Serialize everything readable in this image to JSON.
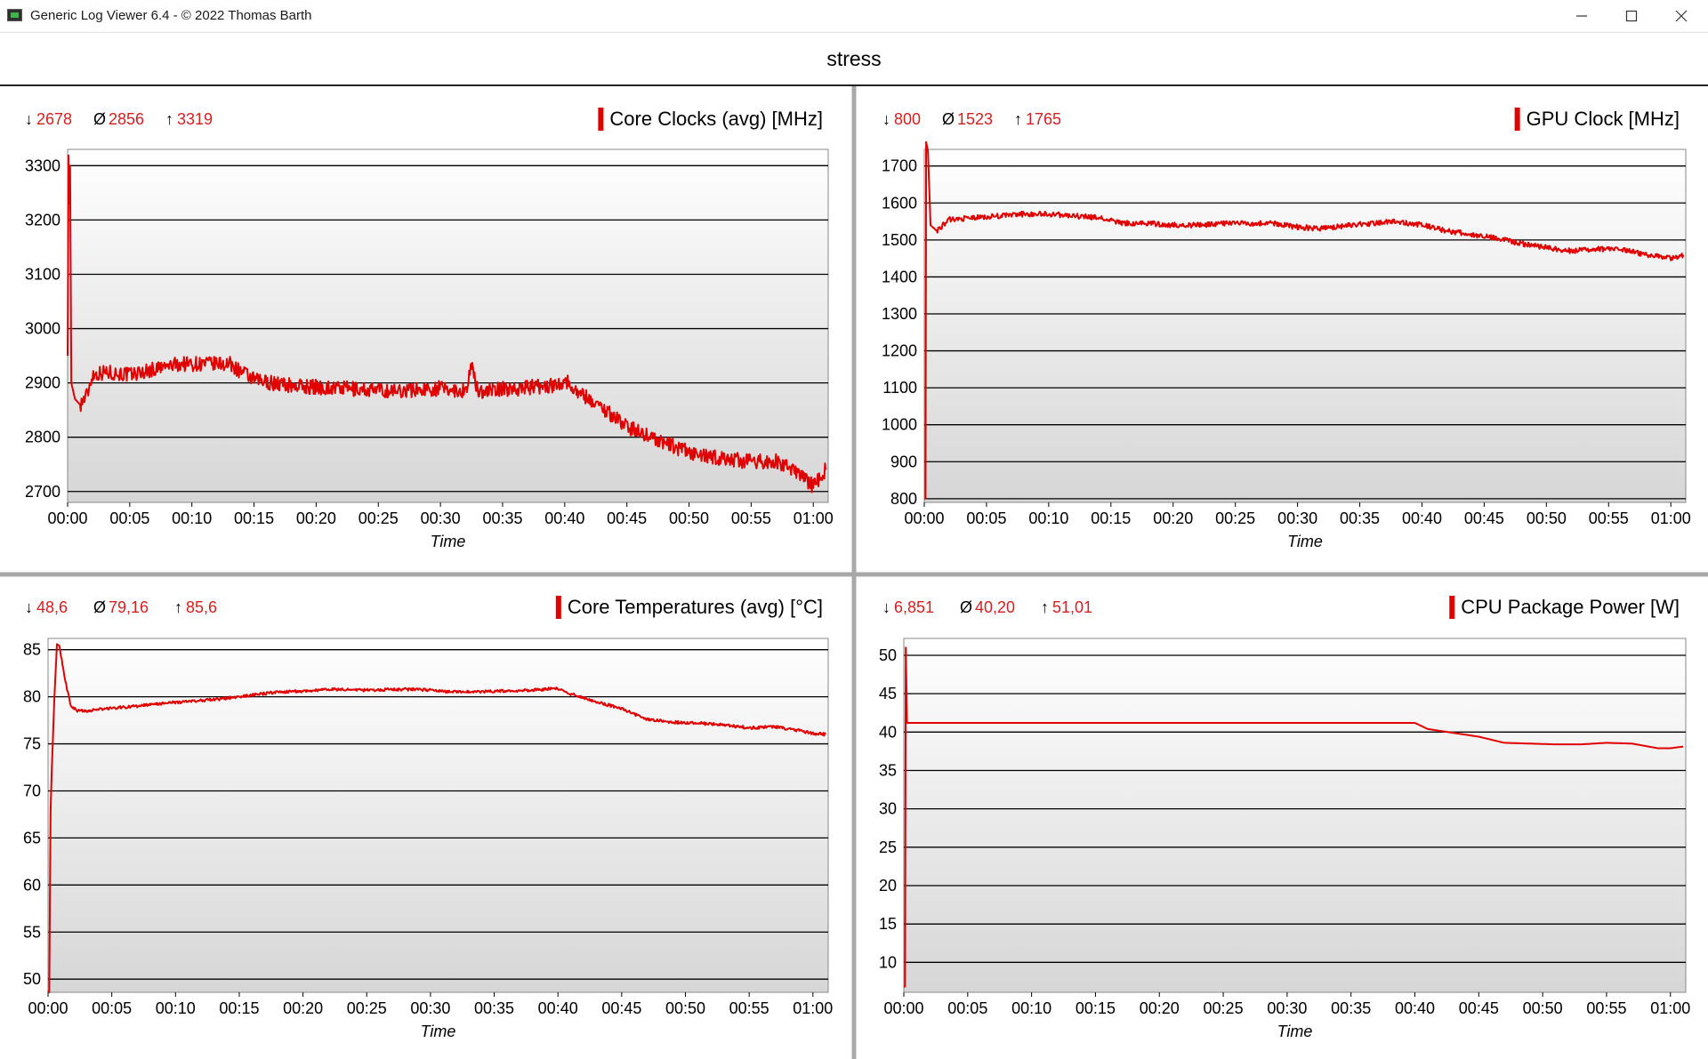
{
  "window": {
    "title": "Generic Log Viewer 6.4 - © 2022 Thomas Barth",
    "minimize_icon": "minimize-icon",
    "maximize_icon": "maximize-icon",
    "close_icon": "close-icon"
  },
  "document_title": "stress",
  "colors": {
    "series": "#e00000",
    "stats": "#d42020",
    "grid": "#000000"
  },
  "chart_data": [
    {
      "type": "line",
      "title": "Core Clocks (avg) [MHz]",
      "xlabel": "Time",
      "ylabel": "",
      "stats": {
        "min": "2678",
        "avg": "2856",
        "max": "3319"
      },
      "x_ticks": [
        "00:00",
        "00:05",
        "00:10",
        "00:15",
        "00:20",
        "00:25",
        "00:30",
        "00:35",
        "00:40",
        "00:45",
        "00:50",
        "00:55",
        "01:00"
      ],
      "y_ticks": [
        2700,
        2800,
        2900,
        3000,
        3100,
        3200,
        3300
      ],
      "xlim": [
        0,
        61.2
      ],
      "ylim": [
        2680,
        3330
      ],
      "noise": 14,
      "series": [
        {
          "values": [
            [
              0,
              2950
            ],
            [
              0.08,
              3319
            ],
            [
              0.12,
              3230
            ],
            [
              0.2,
              3300
            ],
            [
              0.3,
              2900
            ],
            [
              0.6,
              2870
            ],
            [
              1,
              2860
            ],
            [
              1.6,
              2880
            ],
            [
              2,
              2915
            ],
            [
              3,
              2920
            ],
            [
              5,
              2915
            ],
            [
              7,
              2925
            ],
            [
              9,
              2935
            ],
            [
              11,
              2935
            ],
            [
              13,
              2935
            ],
            [
              15,
              2905
            ],
            [
              18,
              2895
            ],
            [
              22,
              2890
            ],
            [
              26,
              2885
            ],
            [
              30,
              2890
            ],
            [
              32,
              2885
            ],
            [
              32.5,
              2930
            ],
            [
              33,
              2885
            ],
            [
              36,
              2890
            ],
            [
              39,
              2895
            ],
            [
              40,
              2905
            ],
            [
              41,
              2885
            ],
            [
              43,
              2855
            ],
            [
              45,
              2820
            ],
            [
              47,
              2800
            ],
            [
              49,
              2780
            ],
            [
              51,
              2765
            ],
            [
              53,
              2760
            ],
            [
              55,
              2755
            ],
            [
              57,
              2755
            ],
            [
              59,
              2730
            ],
            [
              60,
              2710
            ],
            [
              61,
              2740
            ]
          ]
        }
      ]
    },
    {
      "type": "line",
      "title": "GPU Clock [MHz]",
      "xlabel": "Time",
      "ylabel": "",
      "stats": {
        "min": "800",
        "avg": "1523",
        "max": "1765"
      },
      "x_ticks": [
        "00:00",
        "00:05",
        "00:10",
        "00:15",
        "00:20",
        "00:25",
        "00:30",
        "00:35",
        "00:40",
        "00:45",
        "00:50",
        "00:55",
        "01:00"
      ],
      "y_ticks": [
        800,
        900,
        1000,
        1100,
        1200,
        1300,
        1400,
        1500,
        1600,
        1700
      ],
      "xlim": [
        0,
        61.2
      ],
      "ylim": [
        790,
        1745
      ],
      "noise": 7,
      "series": [
        {
          "values": [
            [
              0,
              800
            ],
            [
              0.1,
              800
            ],
            [
              0.15,
              1765
            ],
            [
              0.3,
              1740
            ],
            [
              0.5,
              1540
            ],
            [
              1,
              1525
            ],
            [
              2,
              1555
            ],
            [
              4,
              1560
            ],
            [
              6,
              1565
            ],
            [
              8,
              1570
            ],
            [
              10,
              1570
            ],
            [
              12,
              1565
            ],
            [
              14,
              1560
            ],
            [
              16,
              1545
            ],
            [
              18,
              1545
            ],
            [
              20,
              1540
            ],
            [
              22,
              1540
            ],
            [
              24,
              1545
            ],
            [
              26,
              1545
            ],
            [
              28,
              1545
            ],
            [
              30,
              1535
            ],
            [
              32,
              1530
            ],
            [
              34,
              1540
            ],
            [
              36,
              1545
            ],
            [
              38,
              1550
            ],
            [
              40,
              1540
            ],
            [
              42,
              1525
            ],
            [
              44,
              1515
            ],
            [
              46,
              1505
            ],
            [
              48,
              1490
            ],
            [
              50,
              1480
            ],
            [
              52,
              1470
            ],
            [
              54,
              1475
            ],
            [
              56,
              1475
            ],
            [
              58,
              1460
            ],
            [
              60,
              1450
            ],
            [
              61,
              1460
            ]
          ]
        }
      ]
    },
    {
      "type": "line",
      "title": "Core Temperatures (avg) [°C]",
      "xlabel": "Time",
      "ylabel": "",
      "stats": {
        "min": "48,6",
        "avg": "79,16",
        "max": "85,6"
      },
      "x_ticks": [
        "00:00",
        "00:05",
        "00:10",
        "00:15",
        "00:20",
        "00:25",
        "00:30",
        "00:35",
        "00:40",
        "00:45",
        "00:50",
        "00:55",
        "01:00"
      ],
      "y_ticks": [
        50,
        55,
        60,
        65,
        70,
        75,
        80,
        85
      ],
      "xlim": [
        0,
        61.2
      ],
      "ylim": [
        48.6,
        86.2
      ],
      "noise": 0.15,
      "series": [
        {
          "values": [
            [
              0,
              48.8
            ],
            [
              0.1,
              48.6
            ],
            [
              0.2,
              68
            ],
            [
              0.3,
              72.5
            ],
            [
              0.5,
              80
            ],
            [
              0.7,
              85.6
            ],
            [
              0.9,
              85.4
            ],
            [
              1.3,
              82
            ],
            [
              1.8,
              79
            ],
            [
              2.3,
              78.5
            ],
            [
              3,
              78.5
            ],
            [
              5,
              78.8
            ],
            [
              7,
              79
            ],
            [
              9,
              79.3
            ],
            [
              11,
              79.5
            ],
            [
              13,
              79.7
            ],
            [
              15,
              80
            ],
            [
              18,
              80.5
            ],
            [
              20,
              80.6
            ],
            [
              22,
              80.8
            ],
            [
              25,
              80.7
            ],
            [
              28,
              80.8
            ],
            [
              30,
              80.7
            ],
            [
              32,
              80.5
            ],
            [
              35,
              80.6
            ],
            [
              38,
              80.7
            ],
            [
              40,
              80.9
            ],
            [
              41,
              80.3
            ],
            [
              43,
              79.5
            ],
            [
              45,
              78.7
            ],
            [
              47,
              77.6
            ],
            [
              49,
              77.3
            ],
            [
              51,
              77.2
            ],
            [
              53,
              77
            ],
            [
              55,
              76.7
            ],
            [
              57,
              76.8
            ],
            [
              59,
              76.4
            ],
            [
              60,
              76.1
            ],
            [
              61,
              76
            ]
          ]
        }
      ]
    },
    {
      "type": "line",
      "title": "CPU Package Power [W]",
      "xlabel": "Time",
      "ylabel": "",
      "stats": {
        "min": "6,851",
        "avg": "40,20",
        "max": "51,01"
      },
      "x_ticks": [
        "00:00",
        "00:05",
        "00:10",
        "00:15",
        "00:20",
        "00:25",
        "00:30",
        "00:35",
        "00:40",
        "00:45",
        "00:50",
        "00:55",
        "01:00"
      ],
      "y_ticks": [
        10,
        15,
        20,
        25,
        30,
        35,
        40,
        45,
        50
      ],
      "xlim": [
        0,
        61.2
      ],
      "ylim": [
        6.1,
        52.2
      ],
      "noise": 0,
      "series": [
        {
          "values": [
            [
              0,
              6.85
            ],
            [
              0.1,
              6.85
            ],
            [
              0.15,
              51.01
            ],
            [
              0.25,
              41.2
            ],
            [
              10,
              41.2
            ],
            [
              20,
              41.2
            ],
            [
              30,
              41.2
            ],
            [
              40,
              41.2
            ],
            [
              41,
              40.4
            ],
            [
              43,
              39.9
            ],
            [
              45,
              39.4
            ],
            [
              47,
              38.6
            ],
            [
              49,
              38.5
            ],
            [
              51,
              38.4
            ],
            [
              53,
              38.4
            ],
            [
              55,
              38.6
            ],
            [
              57,
              38.5
            ],
            [
              59,
              37.9
            ],
            [
              60,
              37.9
            ],
            [
              61,
              38.1
            ]
          ]
        }
      ]
    }
  ]
}
